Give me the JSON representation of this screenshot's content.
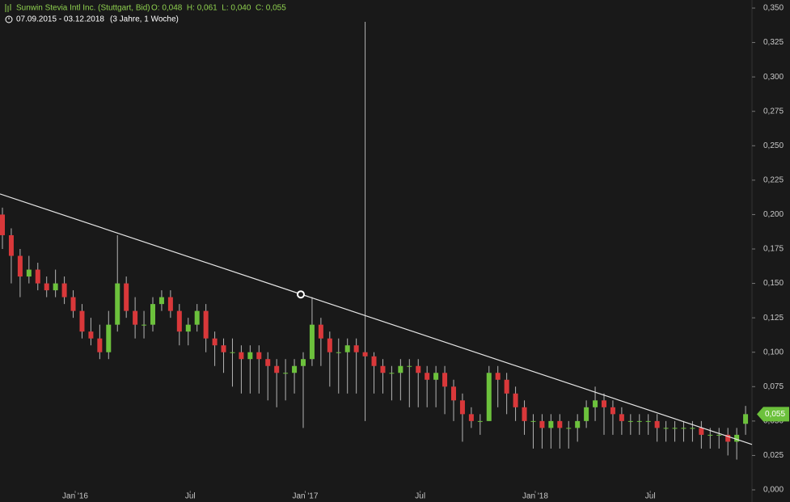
{
  "chart_data": {
    "type": "candlestick",
    "title": "Sunwin Stevia Intl Inc. (Stuttgart, Bid)",
    "ohlc_header": "O: 0,048  H: 0,061  L: 0,040  C: 0,055",
    "date_range": "07.09.2015 - 03.12.2018",
    "period": "(3 Jahre, 1 Woche)",
    "up_color": "#6cc13c",
    "down_color": "#d9383a",
    "wick_color": "#b4b4b4",
    "x": [
      0,
      2,
      4,
      6,
      8,
      10,
      12,
      14,
      16,
      18,
      20,
      22,
      24,
      26,
      28,
      30,
      32,
      34,
      36,
      38,
      40,
      42,
      44,
      46,
      48,
      50,
      52,
      54,
      56,
      58,
      60,
      62,
      64,
      66,
      68,
      70,
      72,
      74,
      76,
      78,
      80,
      82,
      84,
      86,
      88,
      90,
      92,
      94,
      96,
      98,
      100,
      102,
      104,
      106,
      108,
      110,
      112,
      114,
      116,
      118,
      120,
      122,
      124,
      126,
      128,
      130,
      132,
      134,
      136,
      138,
      140,
      142,
      144,
      146,
      148,
      150,
      152,
      154,
      156,
      158,
      160,
      162,
      164,
      166,
      168
    ],
    "open": [
      0.2,
      0.185,
      0.17,
      0.155,
      0.16,
      0.15,
      0.145,
      0.15,
      0.14,
      0.13,
      0.115,
      0.11,
      0.1,
      0.12,
      0.15,
      0.13,
      0.12,
      0.12,
      0.135,
      0.14,
      0.13,
      0.115,
      0.12,
      0.13,
      0.11,
      0.105,
      0.1,
      0.1,
      0.095,
      0.1,
      0.095,
      0.09,
      0.085,
      0.085,
      0.09,
      0.095,
      0.12,
      0.11,
      0.1,
      0.1,
      0.105,
      0.1,
      0.097,
      0.09,
      0.085,
      0.085,
      0.09,
      0.09,
      0.085,
      0.08,
      0.085,
      0.075,
      0.065,
      0.055,
      0.05,
      0.05,
      0.085,
      0.08,
      0.07,
      0.06,
      0.05,
      0.05,
      0.045,
      0.05,
      0.045,
      0.045,
      0.05,
      0.06,
      0.065,
      0.06,
      0.055,
      0.05,
      0.05,
      0.05,
      0.05,
      0.045,
      0.045,
      0.045,
      0.045,
      0.045,
      0.04,
      0.04,
      0.04,
      0.035,
      0.048
    ],
    "high": [
      0.205,
      0.19,
      0.175,
      0.17,
      0.165,
      0.155,
      0.16,
      0.155,
      0.145,
      0.135,
      0.125,
      0.12,
      0.13,
      0.185,
      0.155,
      0.14,
      0.13,
      0.14,
      0.145,
      0.145,
      0.135,
      0.125,
      0.135,
      0.135,
      0.115,
      0.11,
      0.11,
      0.105,
      0.105,
      0.105,
      0.1,
      0.095,
      0.095,
      0.095,
      0.1,
      0.14,
      0.125,
      0.115,
      0.11,
      0.11,
      0.11,
      0.34,
      0.1,
      0.095,
      0.09,
      0.095,
      0.095,
      0.095,
      0.09,
      0.09,
      0.09,
      0.08,
      0.07,
      0.06,
      0.055,
      0.09,
      0.09,
      0.085,
      0.075,
      0.065,
      0.055,
      0.055,
      0.055,
      0.055,
      0.05,
      0.055,
      0.065,
      0.075,
      0.07,
      0.065,
      0.06,
      0.055,
      0.055,
      0.055,
      0.055,
      0.05,
      0.05,
      0.05,
      0.05,
      0.05,
      0.045,
      0.045,
      0.045,
      0.045,
      0.061
    ],
    "low": [
      0.175,
      0.15,
      0.14,
      0.15,
      0.145,
      0.14,
      0.14,
      0.135,
      0.125,
      0.11,
      0.105,
      0.095,
      0.095,
      0.115,
      0.125,
      0.11,
      0.11,
      0.115,
      0.13,
      0.125,
      0.105,
      0.105,
      0.115,
      0.1,
      0.09,
      0.085,
      0.075,
      0.07,
      0.07,
      0.07,
      0.065,
      0.06,
      0.065,
      0.07,
      0.045,
      0.09,
      0.09,
      0.075,
      0.07,
      0.07,
      0.07,
      0.05,
      0.07,
      0.07,
      0.065,
      0.065,
      0.06,
      0.06,
      0.06,
      0.06,
      0.055,
      0.05,
      0.035,
      0.045,
      0.04,
      0.05,
      0.06,
      0.055,
      0.05,
      0.04,
      0.03,
      0.03,
      0.03,
      0.03,
      0.03,
      0.035,
      0.045,
      0.05,
      0.04,
      0.04,
      0.04,
      0.04,
      0.04,
      0.04,
      0.035,
      0.035,
      0.035,
      0.035,
      0.035,
      0.03,
      0.03,
      0.03,
      0.025,
      0.022,
      0.04
    ],
    "close": [
      0.185,
      0.17,
      0.155,
      0.16,
      0.15,
      0.145,
      0.15,
      0.14,
      0.13,
      0.115,
      0.11,
      0.1,
      0.12,
      0.15,
      0.13,
      0.12,
      0.12,
      0.135,
      0.14,
      0.13,
      0.115,
      0.12,
      0.13,
      0.11,
      0.105,
      0.1,
      0.1,
      0.095,
      0.1,
      0.095,
      0.09,
      0.085,
      0.085,
      0.09,
      0.095,
      0.12,
      0.11,
      0.1,
      0.1,
      0.105,
      0.1,
      0.097,
      0.09,
      0.085,
      0.085,
      0.09,
      0.09,
      0.085,
      0.08,
      0.085,
      0.075,
      0.065,
      0.055,
      0.05,
      0.05,
      0.085,
      0.08,
      0.07,
      0.06,
      0.05,
      0.05,
      0.045,
      0.05,
      0.045,
      0.045,
      0.05,
      0.06,
      0.065,
      0.06,
      0.055,
      0.05,
      0.05,
      0.05,
      0.05,
      0.045,
      0.045,
      0.045,
      0.045,
      0.045,
      0.04,
      0.04,
      0.04,
      0.035,
      0.04,
      0.055
    ],
    "xlim": [
      0,
      170
    ],
    "ylim": [
      0,
      0.35
    ],
    "xticks": [
      {
        "value": 17,
        "label": "Jan '16"
      },
      {
        "value": 43,
        "label": "Jul"
      },
      {
        "value": 69,
        "label": "Jan '17"
      },
      {
        "value": 95,
        "label": "Jul"
      },
      {
        "value": 121,
        "label": "Jan '18"
      },
      {
        "value": 147,
        "label": "Jul"
      }
    ],
    "yticks": [
      {
        "value": 0,
        "label": "0,000"
      },
      {
        "value": 0.025,
        "label": "0,025"
      },
      {
        "value": 0.05,
        "label": "0,050"
      },
      {
        "value": 0.075,
        "label": "0,075"
      },
      {
        "value": 0.1,
        "label": "0,100"
      },
      {
        "value": 0.125,
        "label": "0,125"
      },
      {
        "value": 0.15,
        "label": "0,150"
      },
      {
        "value": 0.175,
        "label": "0,175"
      },
      {
        "value": 0.2,
        "label": "0,200"
      },
      {
        "value": 0.225,
        "label": "0,225"
      },
      {
        "value": 0.25,
        "label": "0,250"
      },
      {
        "value": 0.275,
        "label": "0,275"
      },
      {
        "value": 0.3,
        "label": "0,300"
      },
      {
        "value": 0.325,
        "label": "0,325"
      },
      {
        "value": 0.35,
        "label": "0,350"
      }
    ],
    "trendline": {
      "x": [
        0,
        170
      ],
      "y": [
        0.215,
        0.033
      ],
      "anchor_x": 68,
      "anchor_y": 0.142
    },
    "last_price": {
      "value": 0.055,
      "label": "0,055"
    }
  }
}
